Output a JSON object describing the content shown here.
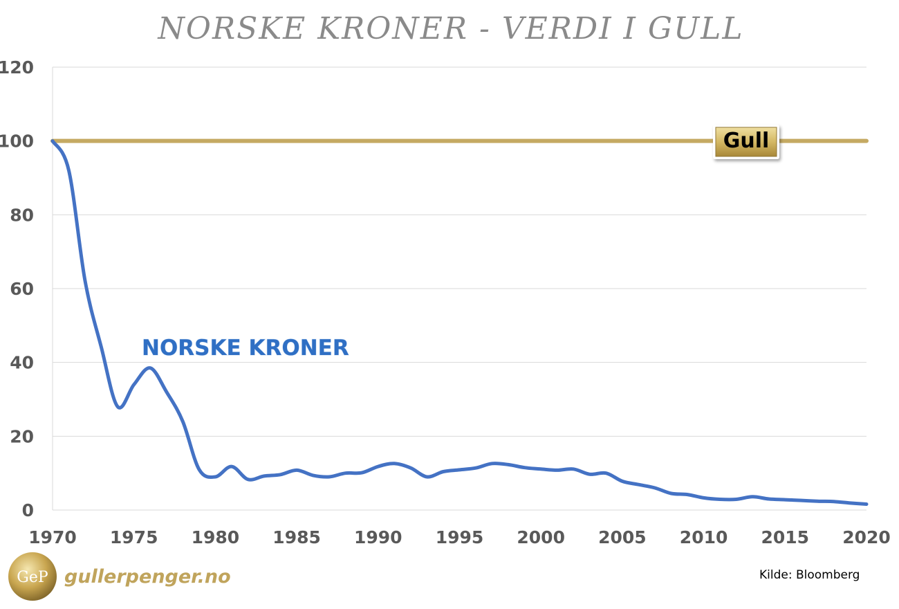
{
  "chart_data": {
    "type": "line",
    "title": "NORSKE KRONER - VERDI I GULL",
    "xlim": [
      1970,
      2020
    ],
    "ylim": [
      0,
      120
    ],
    "x_ticks": [
      "1970",
      "1975",
      "1980",
      "1985",
      "1990",
      "1995",
      "2000",
      "2005",
      "2010",
      "2015",
      "2020"
    ],
    "y_ticks": [
      "0",
      "20",
      "40",
      "60",
      "80",
      "100",
      "120"
    ],
    "grid": true,
    "series": [
      {
        "name": "NORSKE KRONER",
        "color": "#4472c4",
        "x": [
          1970,
          1971,
          1972,
          1973,
          1974,
          1975,
          1976,
          1977,
          1978,
          1979,
          1980,
          1981,
          1982,
          1983,
          1984,
          1985,
          1986,
          1987,
          1988,
          1989,
          1990,
          1991,
          1992,
          1993,
          1994,
          1995,
          1996,
          1997,
          1998,
          1999,
          2000,
          2001,
          2002,
          2003,
          2004,
          2005,
          2006,
          2007,
          2008,
          2009,
          2010,
          2011,
          2012,
          2013,
          2014,
          2015,
          2016,
          2017,
          2018,
          2019,
          2020
        ],
        "y": [
          100,
          92,
          62,
          44,
          28,
          34,
          38.5,
          32,
          24,
          11,
          9,
          11.8,
          8.3,
          9.2,
          9.6,
          10.8,
          9.4,
          9,
          10,
          10.1,
          11.8,
          12.6,
          11.4,
          9,
          10.4,
          10.9,
          11.4,
          12.6,
          12.3,
          11.5,
          11.1,
          10.8,
          11.1,
          9.7,
          10,
          7.8,
          6.9,
          6,
          4.5,
          4.2,
          3.3,
          2.9,
          2.9,
          3.6,
          3,
          2.8,
          2.6,
          2.4,
          2.3,
          1.9,
          1.6
        ]
      },
      {
        "name": "Gull",
        "color": "#c5aa63",
        "x": [
          1970,
          2020
        ],
        "y": [
          100,
          100
        ]
      }
    ],
    "annotations": {
      "series_label": "NORSKE KRONER",
      "gull_label": "Gull"
    }
  },
  "footer": {
    "logo_letters": "GeP",
    "logo_text": "gullerpenger.no",
    "source": "Kilde: Bloomberg"
  },
  "colors": {
    "grid": "#d9d9d9",
    "tick_text": "#595959",
    "title": "#8a8a8a",
    "gold_line": "#c5aa63",
    "nok_line": "#4472c4"
  }
}
